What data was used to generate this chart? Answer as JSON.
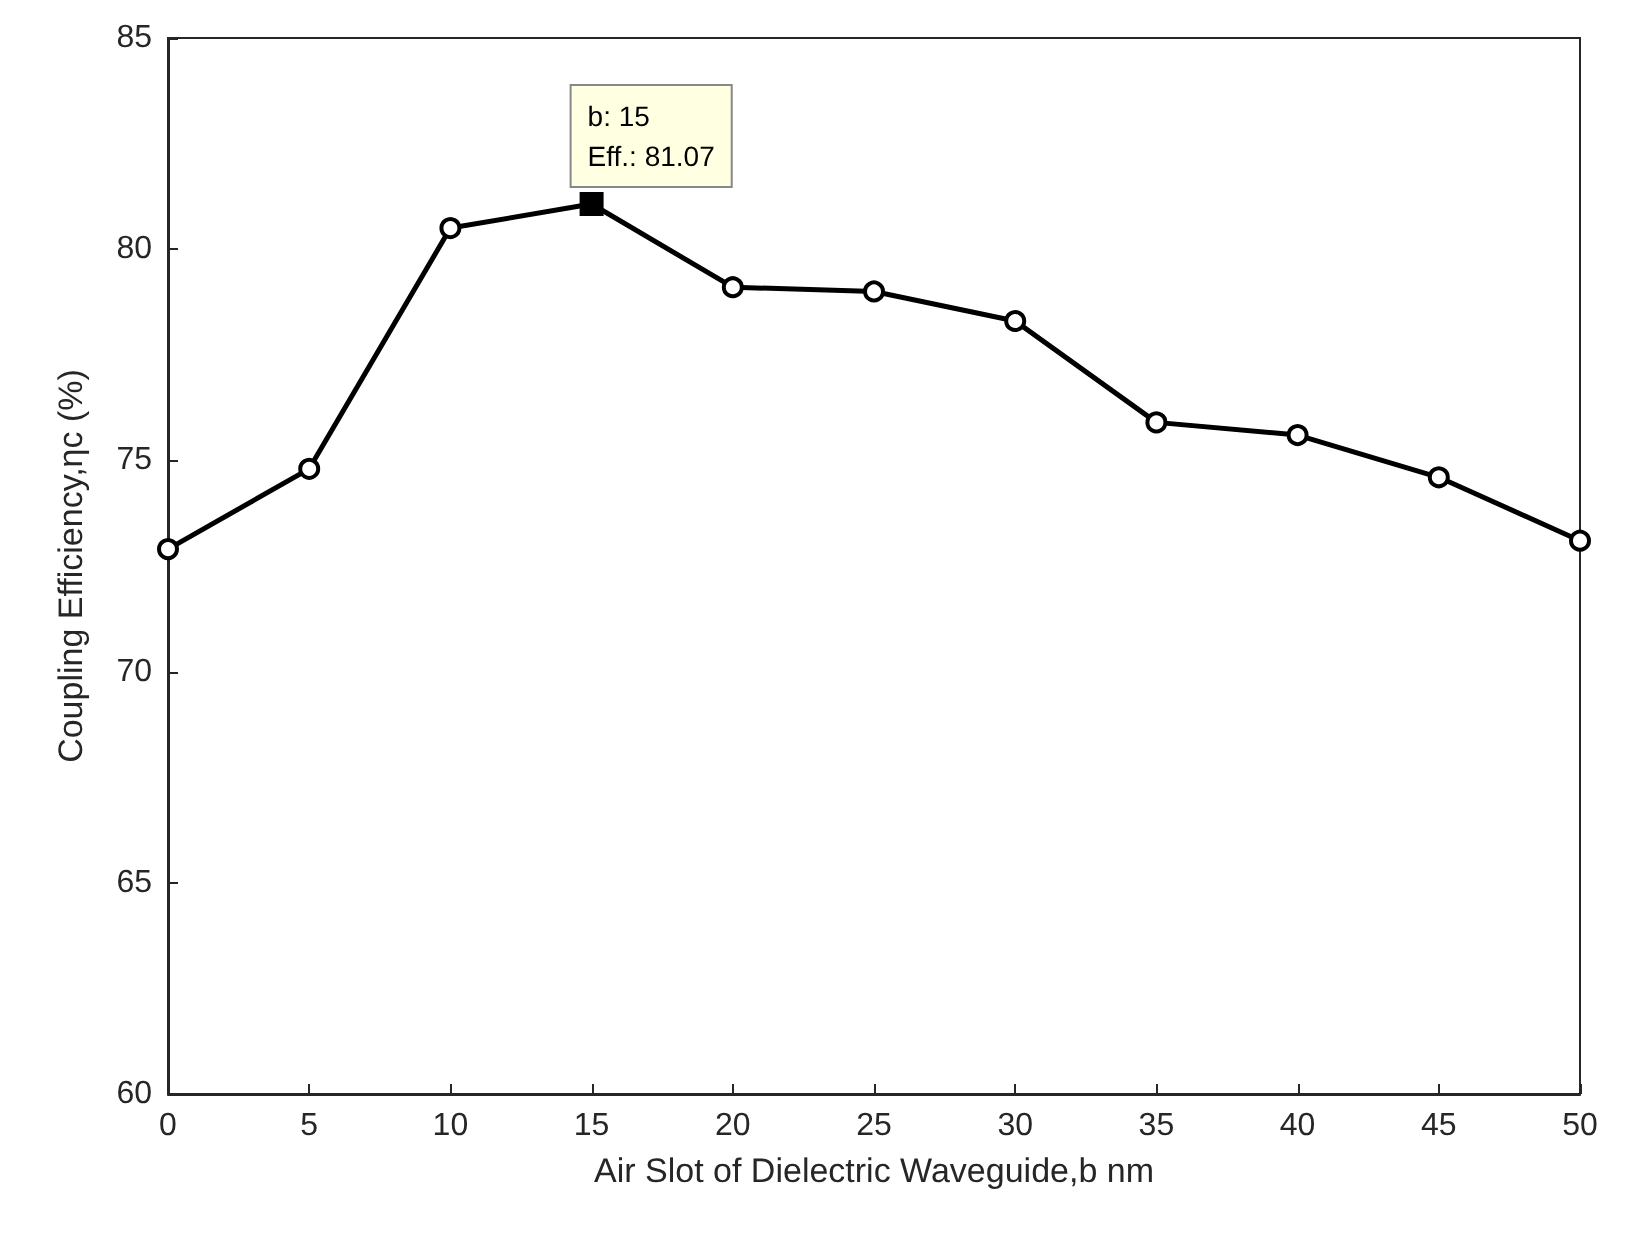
{
  "chart_data": {
    "type": "line",
    "xlabel": "Air Slot of Dielectric Waveguide,b nm",
    "ylabel": "Coupling Efficiency,ηc (%)",
    "x": [
      0,
      5,
      10,
      15,
      20,
      25,
      30,
      35,
      40,
      45,
      50
    ],
    "series": [
      {
        "color": "#000000",
        "values": [
          72.9,
          74.8,
          80.5,
          81.07,
          79.1,
          79.0,
          78.3,
          75.9,
          75.6,
          74.6,
          73.1
        ]
      }
    ],
    "xlim": [
      0,
      50
    ],
    "xticks": [
      0,
      5,
      10,
      15,
      20,
      25,
      30,
      35,
      40,
      45,
      50
    ],
    "ylim": [
      60,
      85
    ],
    "yticks": [
      60,
      65,
      70,
      75,
      80,
      85
    ],
    "marker": "circle",
    "line_style": "solid",
    "grid": false,
    "annotations": [
      {
        "text": "b: 15\nEff.: 81.07",
        "x": 15,
        "y": 81.07
      }
    ]
  }
}
